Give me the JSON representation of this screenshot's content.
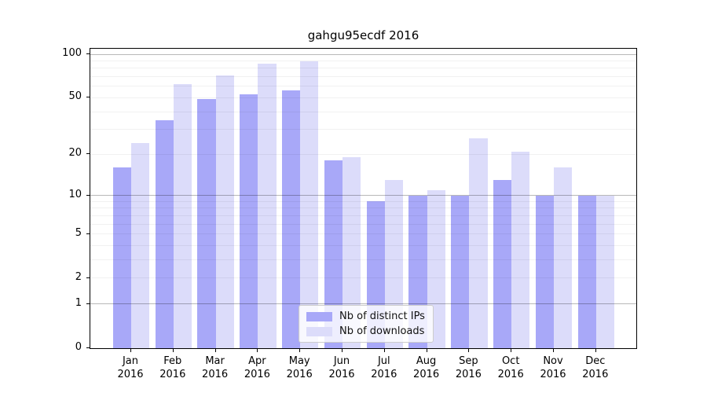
{
  "title": "gahgu95ecdf 2016",
  "chart_data": {
    "type": "bar",
    "title": "gahgu95ecdf 2016",
    "categories": [
      "Jan",
      "Feb",
      "Mar",
      "Apr",
      "May",
      "Jun",
      "Jul",
      "Aug",
      "Sep",
      "Oct",
      "Nov",
      "Dec"
    ],
    "year": "2016",
    "series": [
      {
        "name": "Nb of distinct IPs",
        "color": "#a8a8f8",
        "values": [
          16,
          35,
          49,
          53,
          56,
          18,
          9,
          10,
          10,
          13,
          10,
          10
        ]
      },
      {
        "name": "Nb of downloads",
        "color": "#dcdcfa",
        "values": [
          24,
          62,
          71,
          86,
          89,
          19,
          13,
          11,
          26,
          21,
          16,
          10
        ]
      }
    ],
    "y_scale": "log1p",
    "ylim": [
      0,
      100
    ],
    "y_tick_labels": [
      "100",
      "50",
      "20",
      "10",
      "5",
      "2",
      "1",
      "0"
    ],
    "y_tick_values": [
      100,
      50,
      20,
      10,
      5,
      2,
      1,
      0
    ],
    "y_major_gridlines": [
      1,
      10,
      100
    ],
    "y_minor_gridlines": [
      2,
      3,
      4,
      5,
      6,
      7,
      8,
      9,
      20,
      30,
      40,
      50,
      60,
      70,
      80,
      90
    ],
    "grid": true,
    "legend_position": "bottom-center"
  }
}
